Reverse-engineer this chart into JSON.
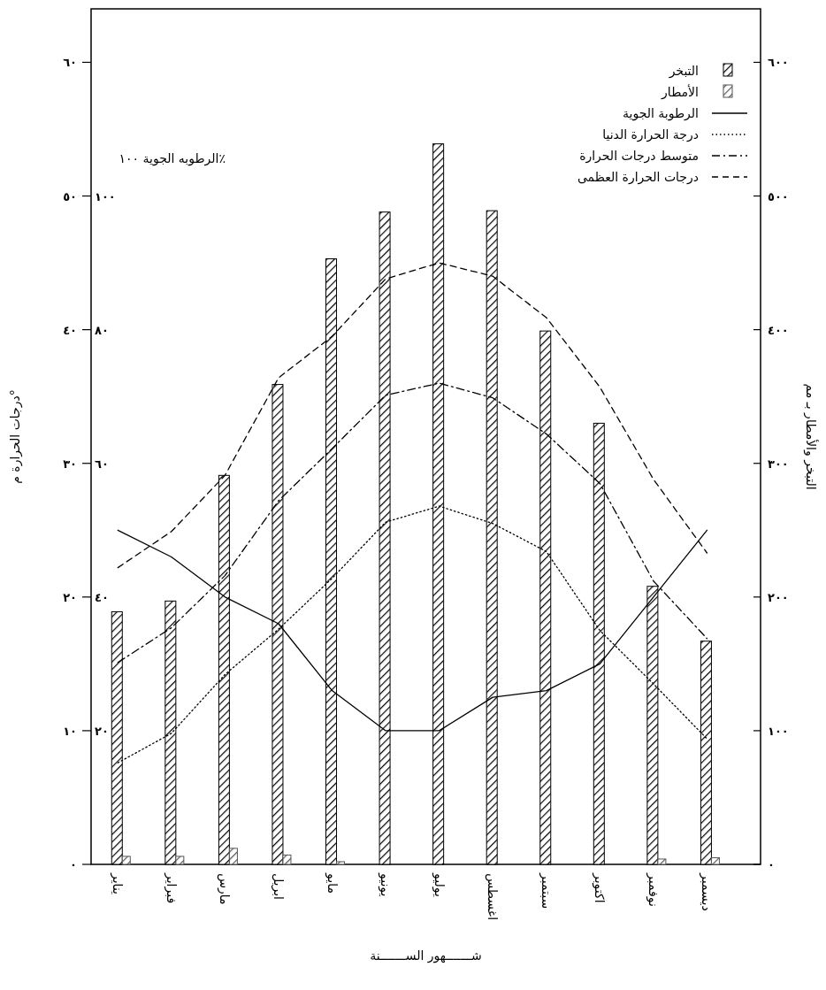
{
  "chart_data": {
    "type": "bar",
    "xlabel": "شـــــــهور الســـــــنة",
    "ylabel": "درجات الحرارة م°",
    "y2label": "الرطوبه الجوية ١٠٠٪",
    "y3label": "التبخر والأمطار بـ مم",
    "categories": [
      "يناير",
      "فبراير",
      "مارس",
      "ابريل",
      "مايو",
      "يونيو",
      "يوليو",
      "اغسطس",
      "سبتمبر",
      "اكتوبر",
      "نوفمبر",
      "ديسمبر"
    ],
    "ylim": [
      0,
      64
    ],
    "yticks": [
      {
        "value": 0,
        "label": "٠"
      },
      {
        "value": 10,
        "label": "١٠"
      },
      {
        "value": 20,
        "label": "٢٠"
      },
      {
        "value": 30,
        "label": "٣٠"
      },
      {
        "value": 40,
        "label": "٤٠"
      },
      {
        "value": 50,
        "label": "٥٠"
      },
      {
        "value": 60,
        "label": "٦٠"
      }
    ],
    "y2lim": [
      0,
      128
    ],
    "y2ticks": [
      {
        "value": 20,
        "label": "٢٠"
      },
      {
        "value": 40,
        "label": "٤٠"
      },
      {
        "value": 60,
        "label": "٦٠"
      },
      {
        "value": 80,
        "label": "٨٠"
      },
      {
        "value": 100,
        "label": "١٠٠"
      }
    ],
    "y3lim": [
      0,
      640
    ],
    "y3ticks": [
      {
        "value": 0,
        "label": "٠"
      },
      {
        "value": 100,
        "label": "١٠٠"
      },
      {
        "value": 200,
        "label": "٢٠٠"
      },
      {
        "value": 300,
        "label": "٣٠٠"
      },
      {
        "value": 400,
        "label": "٤٠٠"
      },
      {
        "value": 500,
        "label": "٥٠٠"
      },
      {
        "value": 600,
        "label": "٦٠٠"
      }
    ],
    "legend": "top right",
    "series": [
      {
        "name": "التبخر",
        "axis": "y3",
        "color": "#000000",
        "values": [
          189,
          197,
          291,
          359,
          453,
          488,
          539,
          489,
          399,
          330,
          208,
          167
        ]
      },
      {
        "name": "الأمطار",
        "axis": "y3",
        "color": "#555555",
        "values": [
          6,
          6,
          12,
          7,
          2,
          0,
          0,
          0,
          0,
          0,
          4,
          5
        ]
      },
      {
        "name": "الرطوبة الجوية",
        "type": "line",
        "axis": "y2",
        "color": "#000000",
        "line_style": "solid",
        "values": [
          50,
          46,
          40,
          36,
          26,
          20,
          20,
          25,
          26,
          30,
          40,
          50
        ]
      },
      {
        "name": "درجة الحرارة الدنيا",
        "type": "line",
        "axis": "y",
        "color": "#000000",
        "line_style": "dotted",
        "values": [
          7.6,
          9.8,
          14.2,
          17.6,
          21.4,
          25.6,
          26.8,
          25.5,
          23.4,
          17.5,
          13.5,
          9.4
        ]
      },
      {
        "name": "متوسط درجات الحرارة",
        "type": "line",
        "axis": "y",
        "color": "#000000",
        "line_style": "dashdot",
        "values": [
          15.1,
          17.7,
          21.6,
          27.2,
          31.1,
          35.1,
          36,
          34.9,
          32.2,
          28.5,
          21.2,
          16.9
        ]
      },
      {
        "name": "درجات الحرارة العظمى",
        "type": "line",
        "axis": "y",
        "color": "#000000",
        "line_style": "dashed",
        "values": [
          22.2,
          24.9,
          29.1,
          36.4,
          39.5,
          43.8,
          45,
          44,
          40.9,
          35.7,
          28.8,
          23.3
        ]
      }
    ]
  }
}
